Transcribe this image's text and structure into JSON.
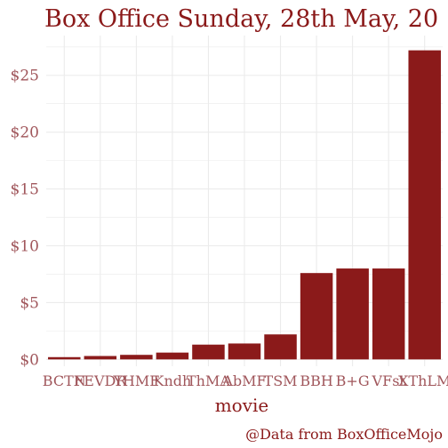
{
  "colors": {
    "bar": "#8b1a1a",
    "grid": "#ebebeb",
    "text": "#8b1a1a",
    "tick_text": "#a0565b",
    "background": "#ffffff"
  },
  "chart_data": {
    "type": "bar",
    "title": "Box Office Sunday, 28th May, 20",
    "xlabel": "movie",
    "ylabel": "",
    "caption": "@Data from BoxOfficeMojo",
    "categories": [
      "BCTN",
      "FEVDR",
      "YHMF",
      "Kndh",
      "ThMA",
      "AbMF",
      "TSM",
      "BBH",
      "B+G",
      "VFst",
      "XThLM"
    ],
    "values": [
      0.2,
      0.3,
      0.4,
      0.6,
      1.3,
      1.4,
      2.2,
      7.6,
      8.0,
      8.0,
      27.2
    ],
    "ylim": [
      -0.6,
      28.5
    ],
    "yticks": [
      0,
      5,
      10,
      15,
      20,
      25
    ],
    "ytick_labels": [
      "$0",
      "$5",
      "$10",
      "$15",
      "$20",
      "$25"
    ],
    "grid": true,
    "legend": "none"
  }
}
